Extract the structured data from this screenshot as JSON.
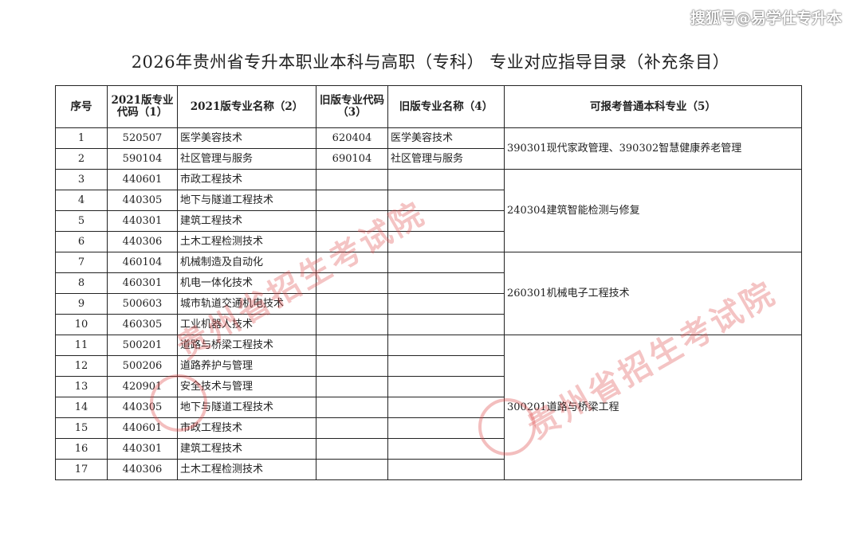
{
  "source_watermark": "搜狐号@易学仕专升本",
  "title": "2026年贵州省专升本职业本科与高职（专科） 专业对应指导目录（补充条目）",
  "headers": [
    "序号",
    "2021版专业代码（1）",
    "2021版专业名称（2）",
    "旧版专业代码（3）",
    "旧版专业名称（4）",
    "可报考普通本科专业（5）"
  ],
  "rows": [
    {
      "no": "1",
      "code": "520507",
      "name": "医学美容技术",
      "old_code": "620404",
      "old_name": "医学美容技术"
    },
    {
      "no": "2",
      "code": "590104",
      "name": "社区管理与服务",
      "old_code": "690104",
      "old_name": "社区管理与服务"
    },
    {
      "no": "3",
      "code": "440601",
      "name": "市政工程技术",
      "old_code": "",
      "old_name": ""
    },
    {
      "no": "4",
      "code": "440305",
      "name": "地下与隧道工程技术",
      "old_code": "",
      "old_name": ""
    },
    {
      "no": "5",
      "code": "440301",
      "name": "建筑工程技术",
      "old_code": "",
      "old_name": ""
    },
    {
      "no": "6",
      "code": "440306",
      "name": "土木工程检测技术",
      "old_code": "",
      "old_name": ""
    },
    {
      "no": "7",
      "code": "460104",
      "name": "机械制造及自动化",
      "old_code": "",
      "old_name": ""
    },
    {
      "no": "8",
      "code": "460301",
      "name": "机电一体化技术",
      "old_code": "",
      "old_name": ""
    },
    {
      "no": "9",
      "code": "500603",
      "name": "城市轨道交通机电技术",
      "old_code": "",
      "old_name": ""
    },
    {
      "no": "10",
      "code": "460305",
      "name": "工业机器人技术",
      "old_code": "",
      "old_name": ""
    },
    {
      "no": "11",
      "code": "500201",
      "name": "道路与桥梁工程技术",
      "old_code": "",
      "old_name": ""
    },
    {
      "no": "12",
      "code": "500206",
      "name": "道路养护与管理",
      "old_code": "",
      "old_name": ""
    },
    {
      "no": "13",
      "code": "420901",
      "name": "安全技术与管理",
      "old_code": "",
      "old_name": ""
    },
    {
      "no": "14",
      "code": "440305",
      "name": "地下与隧道工程技术",
      "old_code": "",
      "old_name": ""
    },
    {
      "no": "15",
      "code": "440601",
      "name": "市政工程技术",
      "old_code": "",
      "old_name": ""
    },
    {
      "no": "16",
      "code": "440301",
      "name": "建筑工程技术",
      "old_code": "",
      "old_name": ""
    },
    {
      "no": "17",
      "code": "440306",
      "name": "土木工程检测技术",
      "old_code": "",
      "old_name": ""
    }
  ],
  "groups": [
    {
      "start": 0,
      "span": 2,
      "text": "390301现代家政管理、390302智慧健康养老管理"
    },
    {
      "start": 2,
      "span": 4,
      "text": "240304建筑智能检测与修复"
    },
    {
      "start": 6,
      "span": 4,
      "text": "260301机械电子工程技术"
    },
    {
      "start": 10,
      "span": 7,
      "text": "300201道路与桥梁工程"
    }
  ],
  "stamp_watermark": "贵州省招生考试院",
  "watermark_color": "#dc4646"
}
